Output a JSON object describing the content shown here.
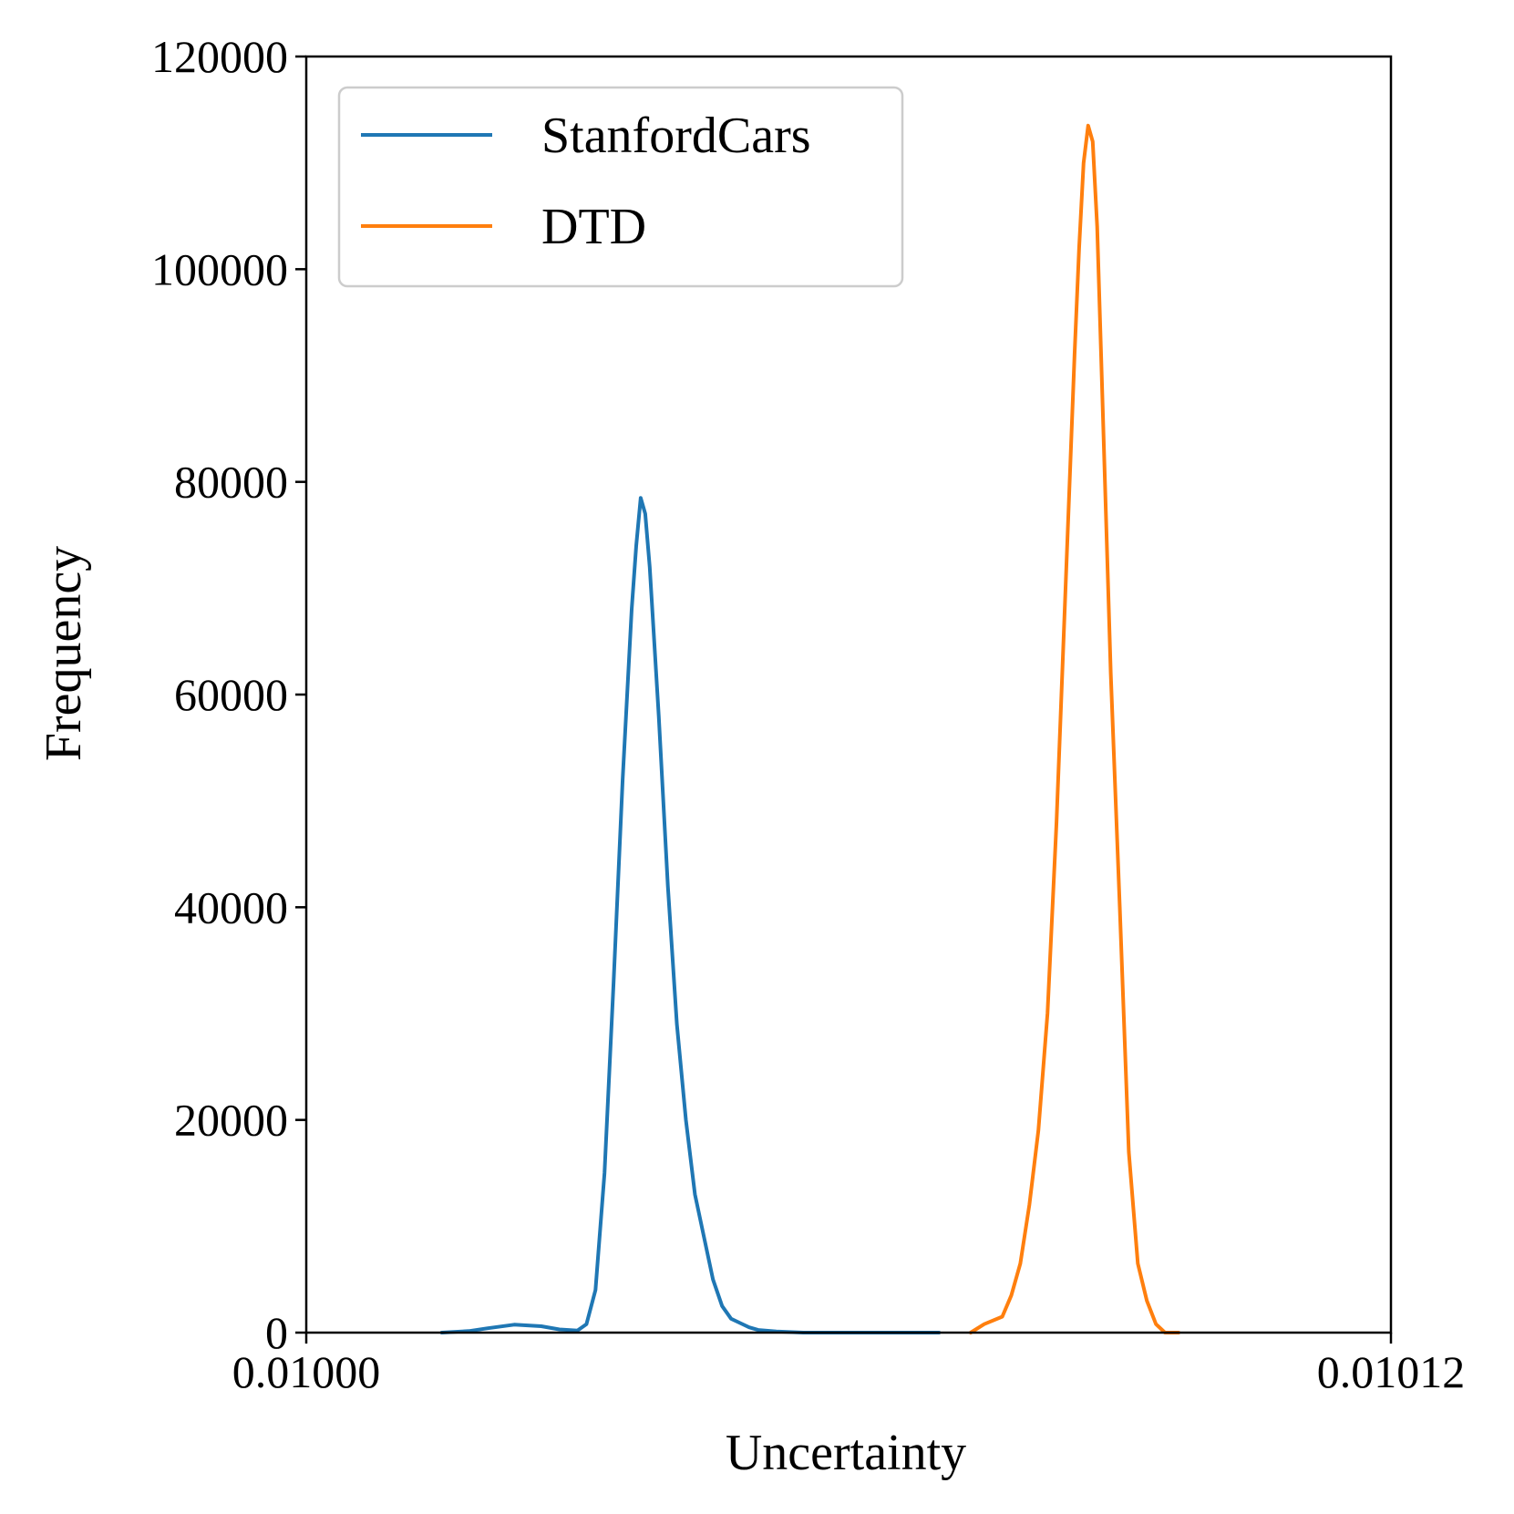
{
  "chart_data": {
    "type": "line",
    "title": "",
    "xlabel": "Uncertainty",
    "ylabel": "Frequency",
    "xlim": [
      0.01,
      0.01012
    ],
    "ylim": [
      0,
      120000
    ],
    "xticks": [
      0.01,
      0.01012
    ],
    "xtick_labels": [
      "0.01000",
      "0.01012"
    ],
    "yticks": [
      0,
      20000,
      40000,
      60000,
      80000,
      100000,
      120000
    ],
    "ytick_labels": [
      "0",
      "20000",
      "40000",
      "60000",
      "80000",
      "100000",
      "120000"
    ],
    "grid": false,
    "legend_position": "upper-left",
    "series": [
      {
        "name": "StanfordCars",
        "color": "#1f77b4",
        "points": [
          [
            0.010015,
            0
          ],
          [
            0.010018,
            150
          ],
          [
            0.01002,
            400
          ],
          [
            0.010023,
            750
          ],
          [
            0.010026,
            600
          ],
          [
            0.010028,
            300
          ],
          [
            0.01003,
            200
          ],
          [
            0.010031,
            800
          ],
          [
            0.010032,
            4000
          ],
          [
            0.010033,
            15000
          ],
          [
            0.010034,
            33000
          ],
          [
            0.010035,
            52000
          ],
          [
            0.010036,
            68000
          ],
          [
            0.0100365,
            74000
          ],
          [
            0.010037,
            78500
          ],
          [
            0.0100375,
            77000
          ],
          [
            0.010038,
            72000
          ],
          [
            0.010039,
            58000
          ],
          [
            0.01004,
            42000
          ],
          [
            0.010041,
            29000
          ],
          [
            0.010042,
            20000
          ],
          [
            0.010043,
            13000
          ],
          [
            0.010044,
            9000
          ],
          [
            0.010045,
            5000
          ],
          [
            0.010046,
            2500
          ],
          [
            0.010047,
            1300
          ],
          [
            0.010048,
            900
          ],
          [
            0.010049,
            500
          ],
          [
            0.01005,
            250
          ],
          [
            0.010052,
            100
          ],
          [
            0.010055,
            0
          ],
          [
            0.01006,
            0
          ],
          [
            0.010065,
            0
          ],
          [
            0.01007,
            0
          ]
        ]
      },
      {
        "name": "DTD",
        "color": "#ff7f0e",
        "points": [
          [
            0.0100735,
            0
          ],
          [
            0.010075,
            800
          ],
          [
            0.010077,
            1500
          ],
          [
            0.010078,
            3500
          ],
          [
            0.010079,
            6500
          ],
          [
            0.01008,
            12000
          ],
          [
            0.010081,
            19000
          ],
          [
            0.010082,
            30000
          ],
          [
            0.010083,
            48000
          ],
          [
            0.010084,
            70000
          ],
          [
            0.010085,
            92000
          ],
          [
            0.0100855,
            102000
          ],
          [
            0.010086,
            110000
          ],
          [
            0.0100865,
            113500
          ],
          [
            0.010087,
            112000
          ],
          [
            0.0100875,
            104000
          ],
          [
            0.010088,
            90000
          ],
          [
            0.010089,
            62000
          ],
          [
            0.01009,
            40000
          ],
          [
            0.010091,
            17000
          ],
          [
            0.010092,
            6500
          ],
          [
            0.010093,
            3000
          ],
          [
            0.010094,
            800
          ],
          [
            0.010095,
            0
          ],
          [
            0.0100965,
            0
          ]
        ]
      }
    ]
  }
}
